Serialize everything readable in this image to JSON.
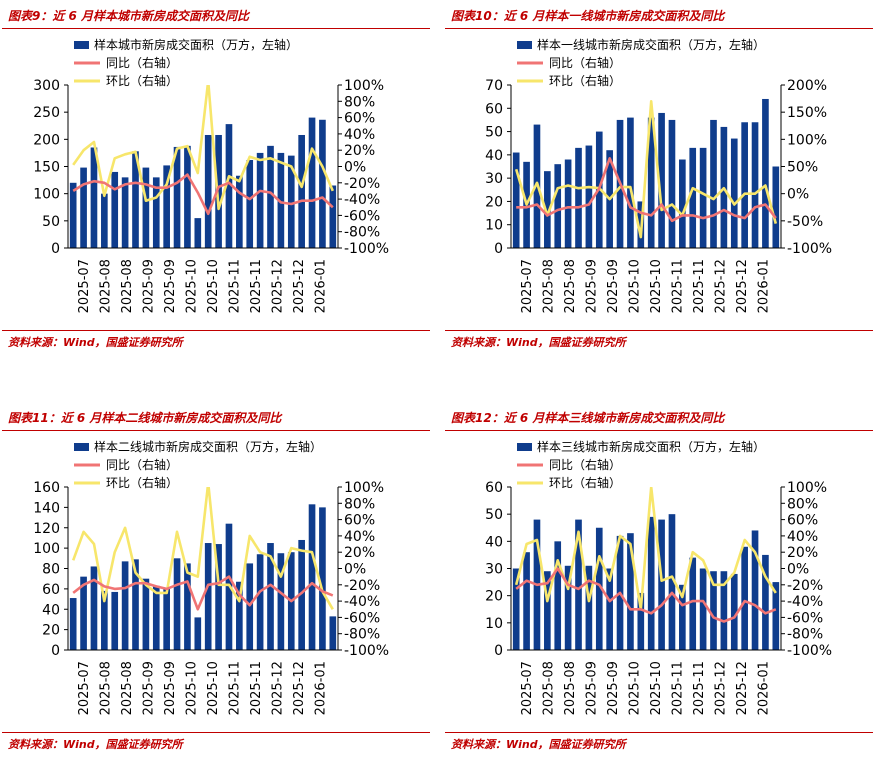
{
  "colors": {
    "bar": "#0f3c8c",
    "yoy": "#f07474",
    "mom": "#f7e66b",
    "accent": "#c00000"
  },
  "x_tick_labels": [
    "2025-07",
    "2025-08",
    "2025-08",
    "2025-09",
    "2025-09",
    "2025-10",
    "2025-10",
    "2025-11",
    "2025-11",
    "2025-12",
    "2025-12",
    "2026-01"
  ],
  "panels": [
    {
      "title": "图表9：近 6 月样本城市新房成交面积及同比",
      "source": "资料来源：Wind，国盛证券研究所",
      "chart_data": {
        "type": "bar",
        "series": [
          {
            "name": "样本城市新房成交面积（万方，左轴）",
            "axis": "left",
            "kind": "bar",
            "values": [
              120,
              148,
              185,
              100,
              140,
              130,
              178,
              148,
              130,
              152,
              186,
              188,
              55,
              208,
              208,
              228,
              133,
              162,
              175,
              188,
              175,
              170,
              208,
              240,
              236,
              115
            ]
          },
          {
            "name": "同比（右轴）",
            "axis": "right",
            "kind": "line",
            "values": [
              -30,
              -22,
              -18,
              -20,
              -28,
              -22,
              -20,
              -22,
              -26,
              -26,
              -20,
              -10,
              -32,
              -58,
              -25,
              -20,
              -32,
              -40,
              -30,
              -32,
              -44,
              -46,
              -42,
              -42,
              -38,
              -50
            ]
          },
          {
            "name": "环比（右轴）",
            "axis": "right",
            "kind": "line",
            "values": [
              2,
              20,
              30,
              -36,
              10,
              15,
              18,
              -42,
              -38,
              -22,
              22,
              25,
              -8,
              105,
              -52,
              -12,
              -18,
              12,
              8,
              10,
              5,
              0,
              -25,
              22,
              0,
              -30
            ]
          }
        ],
        "left_axis": {
          "min": 0,
          "max": 300,
          "ticks": [
            0,
            50,
            100,
            150,
            200,
            250,
            300
          ]
        },
        "right_axis": {
          "min": -100,
          "max": 100,
          "ticks": [
            "100%",
            "80%",
            "60%",
            "40%",
            "20%",
            "0%",
            "-20%",
            "-40%",
            "-60%",
            "-80%",
            "-100%"
          ]
        },
        "legend_position": "top-left"
      }
    },
    {
      "title": "图表10：近 6 月样本一线城市新房成交面积及同比",
      "source": "资料来源：Wind，国盛证券研究所",
      "chart_data": {
        "type": "bar",
        "series": [
          {
            "name": "样本一线城市新房成交面积（万方，左轴）",
            "axis": "left",
            "kind": "bar",
            "values": [
              41,
              37,
              53,
              33,
              36,
              38,
              43,
              44,
              50,
              42,
              55,
              56,
              20,
              56,
              58,
              55,
              38,
              43,
              43,
              55,
              52,
              47,
              54,
              54,
              64,
              35
            ]
          },
          {
            "name": "同比（右轴）",
            "axis": "right",
            "kind": "line",
            "values": [
              -25,
              -25,
              -20,
              -40,
              -30,
              -25,
              -25,
              -20,
              10,
              65,
              20,
              -25,
              -35,
              -40,
              -20,
              -50,
              -40,
              -40,
              -45,
              -40,
              -30,
              -40,
              -45,
              -25,
              -20,
              -45
            ]
          },
          {
            "name": "环比（右轴）",
            "axis": "right",
            "kind": "line",
            "values": [
              45,
              -20,
              20,
              -40,
              10,
              15,
              10,
              12,
              10,
              -10,
              12,
              12,
              -80,
              170,
              -30,
              -20,
              -40,
              10,
              0,
              -10,
              10,
              -20,
              0,
              0,
              15,
              -55
            ]
          }
        ],
        "left_axis": {
          "min": 0,
          "max": 70,
          "ticks": [
            0,
            10,
            20,
            30,
            40,
            50,
            60,
            70
          ]
        },
        "right_axis": {
          "min": -100,
          "max": 200,
          "ticks": [
            "200%",
            "150%",
            "100%",
            "50%",
            "0%",
            "-50%",
            "-100%"
          ]
        },
        "legend_position": "top-left"
      }
    },
    {
      "title": "图表11：近 6 月样本二线城市新房成交面积及同比",
      "source": "资料来源：Wind，国盛证券研究所",
      "chart_data": {
        "type": "bar",
        "series": [
          {
            "name": "样本二线城市新房成交面积（万方，左轴）",
            "axis": "left",
            "kind": "bar",
            "values": [
              51,
              72,
              82,
              58,
              57,
              87,
              89,
              70,
              63,
              60,
              90,
              85,
              32,
              105,
              104,
              124,
              67,
              85,
              94,
              105,
              95,
              96,
              108,
              143,
              140,
              33
            ]
          },
          {
            "name": "同比（右轴）",
            "axis": "right",
            "kind": "line",
            "values": [
              -30,
              -20,
              -14,
              -22,
              -25,
              -24,
              -18,
              -18,
              -22,
              -25,
              -20,
              -16,
              -50,
              -20,
              -18,
              -10,
              -32,
              -45,
              -28,
              -20,
              -30,
              -40,
              -30,
              -18,
              -28,
              -33
            ]
          },
          {
            "name": "环比（右轴）",
            "axis": "right",
            "kind": "line",
            "values": [
              10,
              45,
              30,
              -40,
              20,
              50,
              -5,
              -20,
              -30,
              -30,
              45,
              -5,
              -10,
              105,
              -20,
              -20,
              -40,
              40,
              20,
              15,
              -10,
              25,
              22,
              20,
              -28,
              -50
            ]
          }
        ],
        "left_axis": {
          "min": 0,
          "max": 160,
          "ticks": [
            0,
            20,
            40,
            60,
            80,
            100,
            120,
            140,
            160
          ]
        },
        "right_axis": {
          "min": -100,
          "max": 100,
          "ticks": [
            "100%",
            "80%",
            "60%",
            "40%",
            "20%",
            "0%",
            "-20%",
            "-40%",
            "-60%",
            "-80%",
            "-100%"
          ]
        },
        "legend_position": "top-left"
      }
    },
    {
      "title": "图表12：近 6 月样本三线城市新房成交面积及同比",
      "source": "资料来源：Wind，国盛证券研究所",
      "chart_data": {
        "type": "bar",
        "series": [
          {
            "name": "样本三线城市新房成交面积（万方，左轴）",
            "axis": "left",
            "kind": "bar",
            "values": [
              30,
              36,
              48,
              29,
              40,
              31,
              48,
              31,
              45,
              30,
              42,
              43,
              21,
              49,
              48,
              50,
              24,
              34,
              30,
              29,
              29,
              28,
              38,
              44,
              35,
              25
            ]
          },
          {
            "name": "同比（右轴）",
            "axis": "right",
            "kind": "line",
            "values": [
              -25,
              -15,
              -20,
              -18,
              0,
              -20,
              -25,
              -15,
              -20,
              -40,
              -30,
              -50,
              -50,
              -55,
              -45,
              -30,
              -45,
              -40,
              -40,
              -60,
              -65,
              -60,
              -40,
              -45,
              -55,
              -50
            ]
          },
          {
            "name": "环比（右轴）",
            "axis": "right",
            "kind": "line",
            "values": [
              -20,
              30,
              35,
              -40,
              10,
              -25,
              45,
              -40,
              15,
              -15,
              40,
              30,
              -50,
              100,
              -15,
              -10,
              -35,
              20,
              10,
              -20,
              -20,
              -5,
              35,
              20,
              -10,
              -30
            ]
          }
        ],
        "left_axis": {
          "min": 0,
          "max": 60,
          "ticks": [
            0,
            10,
            20,
            30,
            40,
            50,
            60
          ]
        },
        "right_axis": {
          "min": -100,
          "max": 100,
          "ticks": [
            "100%",
            "80%",
            "60%",
            "40%",
            "20%",
            "0%",
            "-20%",
            "-40%",
            "-60%",
            "-80%",
            "-100%"
          ]
        },
        "legend_position": "top-left"
      }
    }
  ]
}
